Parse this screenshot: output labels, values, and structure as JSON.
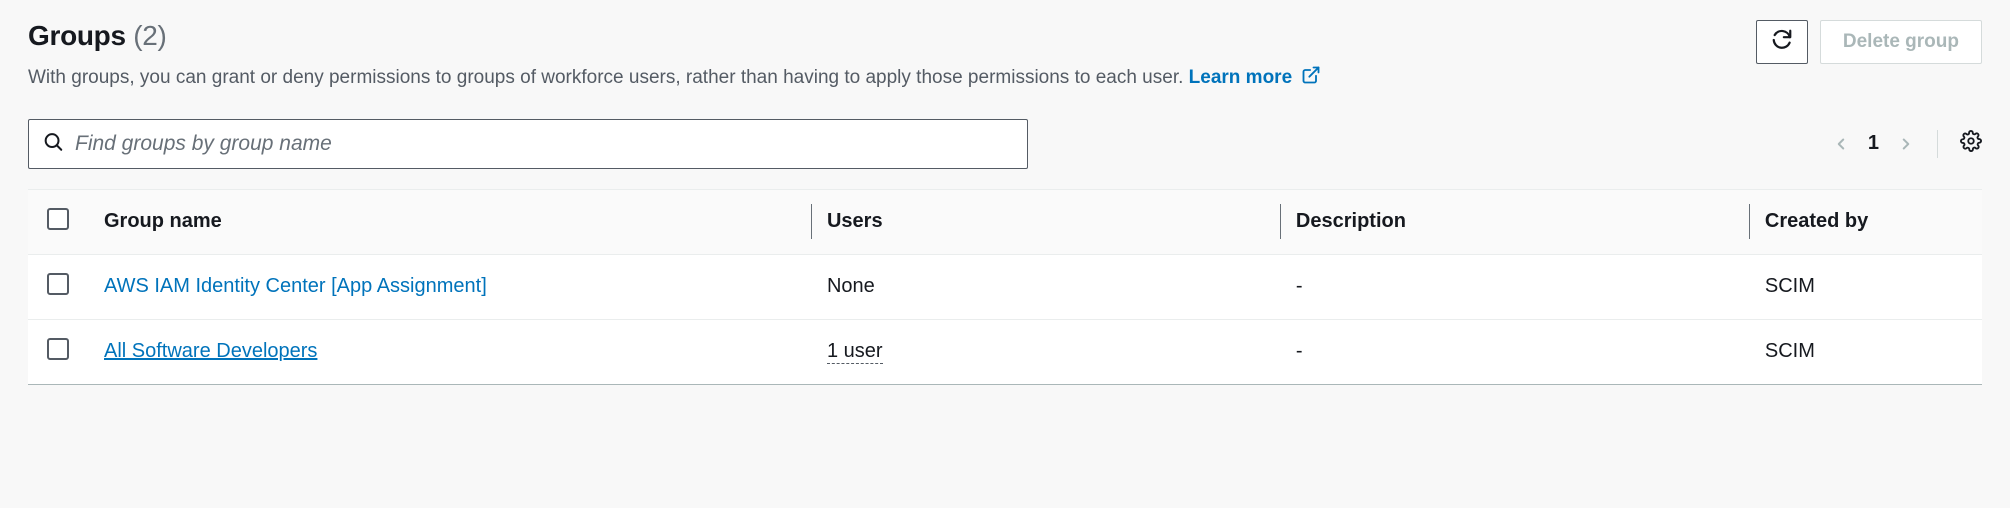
{
  "header": {
    "title": "Groups",
    "count": "(2)",
    "description": "With groups, you can grant or deny permissions to groups of workforce users, rather than having to apply those permissions to each user.",
    "learn_more": "Learn more"
  },
  "actions": {
    "delete_label": "Delete group"
  },
  "search": {
    "placeholder": "Find groups by group name"
  },
  "pagination": {
    "page": "1"
  },
  "table": {
    "columns": {
      "name": "Group name",
      "users": "Users",
      "description": "Description",
      "created_by": "Created by"
    },
    "rows": [
      {
        "name": "AWS IAM Identity Center [App Assignment]",
        "name_underline": false,
        "users": "None",
        "users_dashed": false,
        "description": "-",
        "created_by": "SCIM"
      },
      {
        "name": "All Software Developers",
        "name_underline": true,
        "users": "1 user",
        "users_dashed": true,
        "description": "-",
        "created_by": "SCIM"
      }
    ]
  },
  "colors": {
    "link": "#0073bb",
    "muted": "#687078",
    "border": "#eaeded"
  }
}
